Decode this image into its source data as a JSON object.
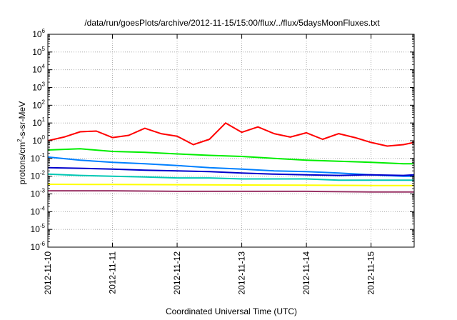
{
  "chart_data": {
    "type": "line",
    "title": "/data/run/goesPlots/archive/2012-11-15/15:00/flux/../flux/5daysMoonFluxes.txt",
    "xlabel": "Coordinated Universal Time (UTC)",
    "ylabel": "protons/cm²-s-sr-MeV",
    "ylabel_base": "protons/cm",
    "ylabel_sup": "2",
    "ylabel_rest": "-s-sr-MeV",
    "y_scale": "log",
    "ylim": [
      1e-06,
      1000000.0
    ],
    "xlim": [
      "2012-11-10",
      "2012-11-15 16:00"
    ],
    "grid": true,
    "y_ticks": [
      {
        "base": "10",
        "exp": "-6",
        "value": 1e-06
      },
      {
        "base": "10",
        "exp": "-5",
        "value": 1e-05
      },
      {
        "base": "10",
        "exp": "-4",
        "value": 0.0001
      },
      {
        "base": "10",
        "exp": "-3",
        "value": 0.001
      },
      {
        "base": "10",
        "exp": "-2",
        "value": 0.01
      },
      {
        "base": "10",
        "exp": "-1",
        "value": 0.1
      },
      {
        "base": "10",
        "exp": "0",
        "value": 1
      },
      {
        "base": "10",
        "exp": "1",
        "value": 10
      },
      {
        "base": "10",
        "exp": "2",
        "value": 100
      },
      {
        "base": "10",
        "exp": "3",
        "value": 1000
      },
      {
        "base": "10",
        "exp": "4",
        "value": 10000
      },
      {
        "base": "10",
        "exp": "5",
        "value": 100000
      },
      {
        "base": "10",
        "exp": "6",
        "value": 1000000
      }
    ],
    "x_ticks": [
      "2012-11-10",
      "2012-11-11",
      "2012-11-12",
      "2012-11-13",
      "2012-11-14",
      "2012-11-15"
    ],
    "series": [
      {
        "color": "#ff0000",
        "x": [
          "2012-11-10 00:00",
          "2012-11-10 06:00",
          "2012-11-10 12:00",
          "2012-11-10 18:00",
          "2012-11-11 00:00",
          "2012-11-11 06:00",
          "2012-11-11 12:00",
          "2012-11-11 18:00",
          "2012-11-12 00:00",
          "2012-11-12 06:00",
          "2012-11-12 12:00",
          "2012-11-12 18:00",
          "2012-11-13 00:00",
          "2012-11-13 06:00",
          "2012-11-13 12:00",
          "2012-11-13 18:00",
          "2012-11-14 00:00",
          "2012-11-14 06:00",
          "2012-11-14 12:00",
          "2012-11-14 18:00",
          "2012-11-15 00:00",
          "2012-11-15 06:00",
          "2012-11-15 12:00",
          "2012-11-15 16:00"
        ],
        "y": [
          1.0,
          1.6,
          3.2,
          3.5,
          1.5,
          2.0,
          5.0,
          2.5,
          1.8,
          0.6,
          1.2,
          10.0,
          3.0,
          6.0,
          2.5,
          1.6,
          2.8,
          1.2,
          2.5,
          1.5,
          0.8,
          0.5,
          0.6,
          0.8
        ]
      },
      {
        "color": "#00ee00",
        "x": [
          "2012-11-10 00:00",
          "2012-11-10 12:00",
          "2012-11-11 00:00",
          "2012-11-11 12:00",
          "2012-11-12 00:00",
          "2012-11-12 12:00",
          "2012-11-13 00:00",
          "2012-11-13 12:00",
          "2012-11-14 00:00",
          "2012-11-14 12:00",
          "2012-11-15 00:00",
          "2012-11-15 12:00",
          "2012-11-15 16:00"
        ],
        "y": [
          0.3,
          0.35,
          0.25,
          0.22,
          0.18,
          0.15,
          0.13,
          0.1,
          0.08,
          0.07,
          0.06,
          0.05,
          0.05
        ]
      },
      {
        "color": "#0080ff",
        "x": [
          "2012-11-10 00:00",
          "2012-11-10 12:00",
          "2012-11-11 00:00",
          "2012-11-11 12:00",
          "2012-11-12 00:00",
          "2012-11-12 12:00",
          "2012-11-13 00:00",
          "2012-11-13 12:00",
          "2012-11-14 00:00",
          "2012-11-14 12:00",
          "2012-11-15 00:00",
          "2012-11-15 12:00",
          "2012-11-15 16:00"
        ],
        "y": [
          0.12,
          0.08,
          0.06,
          0.05,
          0.04,
          0.03,
          0.025,
          0.02,
          0.018,
          0.015,
          0.012,
          0.01,
          0.01
        ]
      },
      {
        "color": "#0000cc",
        "x": [
          "2012-11-10 00:00",
          "2012-11-10 12:00",
          "2012-11-11 00:00",
          "2012-11-11 12:00",
          "2012-11-12 00:00",
          "2012-11-12 12:00",
          "2012-11-13 00:00",
          "2012-11-13 12:00",
          "2012-11-14 00:00",
          "2012-11-14 12:00",
          "2012-11-15 00:00",
          "2012-11-15 12:00",
          "2012-11-15 16:00"
        ],
        "y": [
          0.03,
          0.028,
          0.025,
          0.022,
          0.02,
          0.018,
          0.015,
          0.013,
          0.012,
          0.011,
          0.012,
          0.011,
          0.012
        ]
      },
      {
        "color": "#00c8b4",
        "x": [
          "2012-11-10 00:00",
          "2012-11-10 12:00",
          "2012-11-11 00:00",
          "2012-11-11 12:00",
          "2012-11-12 00:00",
          "2012-11-12 12:00",
          "2012-11-13 00:00",
          "2012-11-13 12:00",
          "2012-11-14 00:00",
          "2012-11-14 12:00",
          "2012-11-15 00:00",
          "2012-11-15 12:00",
          "2012-11-15 16:00"
        ],
        "y": [
          0.013,
          0.011,
          0.01,
          0.009,
          0.008,
          0.008,
          0.007,
          0.007,
          0.007,
          0.006,
          0.006,
          0.006,
          0.006
        ]
      },
      {
        "color": "#ffff00",
        "x": [
          "2012-11-10 00:00",
          "2012-11-11 00:00",
          "2012-11-12 00:00",
          "2012-11-13 00:00",
          "2012-11-14 00:00",
          "2012-11-15 00:00",
          "2012-11-15 16:00"
        ],
        "y": [
          0.0035,
          0.0034,
          0.0033,
          0.0032,
          0.0031,
          0.003,
          0.003
        ]
      },
      {
        "color": "#993366",
        "x": [
          "2012-11-10 00:00",
          "2012-11-11 00:00",
          "2012-11-12 00:00",
          "2012-11-13 00:00",
          "2012-11-14 00:00",
          "2012-11-15 00:00",
          "2012-11-15 16:00"
        ],
        "y": [
          0.0015,
          0.0015,
          0.0014,
          0.0014,
          0.0014,
          0.0013,
          0.0013
        ]
      }
    ]
  }
}
